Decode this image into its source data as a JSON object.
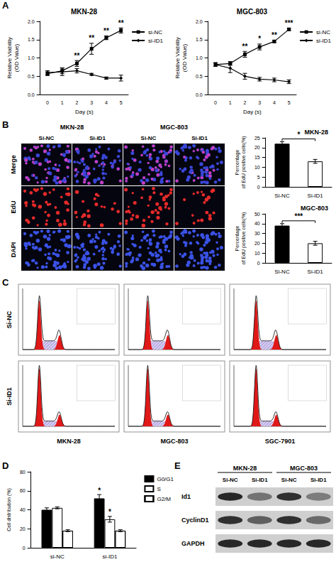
{
  "panel_labels": [
    "A",
    "B",
    "C",
    "D",
    "E"
  ],
  "chart_data": [
    {
      "type": "line",
      "title": "MKN-28",
      "x_label": "Day (s)",
      "y_label": "Relative Viability\n(OD Value)",
      "categories": [
        "0",
        "1",
        "2",
        "3",
        "4",
        "5"
      ],
      "series": [
        {
          "name": "si-NC",
          "color": "#000000",
          "marker": "square",
          "values": [
            0.57,
            0.65,
            0.85,
            1.25,
            1.55,
            1.75
          ],
          "errors": [
            0.05,
            0.08,
            0.08,
            0.15,
            0.05,
            0.07
          ]
        },
        {
          "name": "si-ID1",
          "color": "#000000",
          "marker": "diamond",
          "values": [
            0.6,
            0.62,
            0.65,
            0.55,
            0.45,
            0.45
          ],
          "errors": [
            0.05,
            0.1,
            0.06,
            0.03,
            0.03,
            0.08
          ]
        }
      ],
      "significance": [
        null,
        null,
        "**",
        "**",
        "**",
        "**"
      ],
      "ylim": [
        0,
        2
      ],
      "yticks": [
        {
          "value": 0,
          "label": "0.0"
        },
        0.5,
        {
          "value": 1,
          "label": "1.0"
        },
        1.5,
        {
          "value": 2,
          "label": "2.0"
        }
      ],
      "legend": "upper right"
    },
    {
      "type": "line",
      "title": "MGC-803",
      "x_label": "Day (s)",
      "y_label": "Relative Viability\n(OD Value)",
      "categories": [
        "0",
        "1",
        "2",
        "3",
        "4",
        "5"
      ],
      "series": [
        {
          "name": "si-NC",
          "color": "#000000",
          "marker": "square",
          "values": [
            0.82,
            0.85,
            1.1,
            1.3,
            1.45,
            1.78
          ],
          "errors": [
            0.05,
            0.05,
            0.08,
            0.08,
            0.03,
            0.03
          ]
        },
        {
          "name": "si-ID1",
          "color": "#000000",
          "marker": "diamond",
          "values": [
            0.82,
            0.72,
            0.5,
            0.42,
            0.4,
            0.35
          ],
          "errors": [
            0.05,
            0.12,
            0.08,
            0.05,
            0.05,
            0.05
          ]
        }
      ],
      "significance": [
        null,
        null,
        "**",
        "*",
        "**",
        "***"
      ],
      "ylim": [
        0,
        2
      ],
      "yticks": [
        {
          "value": 0,
          "label": "0.0"
        },
        0.5,
        {
          "value": 1,
          "label": "1.0"
        },
        1.5,
        {
          "value": 2,
          "label": "2.0"
        }
      ],
      "legend": "upper right"
    },
    {
      "type": "bar",
      "title": "MKN-28",
      "y_label": "Percentage\nof EdU positive cells(%)",
      "categories": [
        "Si-NC",
        "Si-ID1"
      ],
      "values": [
        22,
        13
      ],
      "errors": [
        1,
        1
      ],
      "colors": [
        "#000000",
        "#ffffff"
      ],
      "significance": "*",
      "ylim": [
        0,
        25
      ],
      "yticks": [
        0,
        5,
        10,
        15,
        20,
        25
      ]
    },
    {
      "type": "bar",
      "title": "MGC-803",
      "y_label": "Percentage\nof EdU positive cells(%)",
      "categories": [
        "Si-NC",
        "Si-ID1"
      ],
      "values": [
        38,
        20
      ],
      "errors": [
        2,
        2
      ],
      "colors": [
        "#000000",
        "#ffffff"
      ],
      "significance": "***",
      "ylim": [
        0,
        50
      ],
      "yticks": [
        0,
        10,
        20,
        30,
        40,
        50
      ]
    },
    {
      "type": "bar",
      "y_label": "Cell distribution (%)",
      "categories": [
        "si-NC",
        "si-ID1"
      ],
      "series": [
        {
          "name": "G0/G1",
          "color": "#000000",
          "values": [
            40,
            52
          ],
          "errors": [
            2,
            4
          ],
          "significance": [
            null,
            "*"
          ]
        },
        {
          "name": "S",
          "color": "#ffffff",
          "values": [
            42,
            30
          ],
          "errors": [
            1,
            3
          ],
          "significance": [
            null,
            "*"
          ]
        },
        {
          "name": "G2/M",
          "color": "#ffffff",
          "marker": "hatch",
          "values": [
            18,
            18
          ],
          "errors": [
            1,
            1
          ]
        }
      ],
      "ylim": [
        0,
        80
      ],
      "yticks": [
        0,
        20,
        40,
        60,
        80
      ],
      "legend": "upper right"
    }
  ],
  "edu_images": {
    "cell_lines": [
      "MKN-28",
      "MGC-803"
    ],
    "columns": [
      "Si-NC",
      "Si-ID1",
      "Si-NC",
      "Si-ID1"
    ],
    "rows": [
      "Merge",
      "EdU",
      "DAPI"
    ]
  },
  "flow_cytometry": {
    "rows": [
      "Si-NC",
      "Si-ID1"
    ],
    "columns": [
      "MKN-28",
      "MGC-803",
      "SGC-7901"
    ]
  },
  "western_blot": {
    "cell_lines": [
      "MKN-28",
      "MGC-803"
    ],
    "columns": [
      "Si-NC",
      "Si-ID1",
      "Si-NC",
      "Si-ID1"
    ],
    "rows": [
      "Id1",
      "CyclinD1",
      "GAPDH"
    ]
  }
}
